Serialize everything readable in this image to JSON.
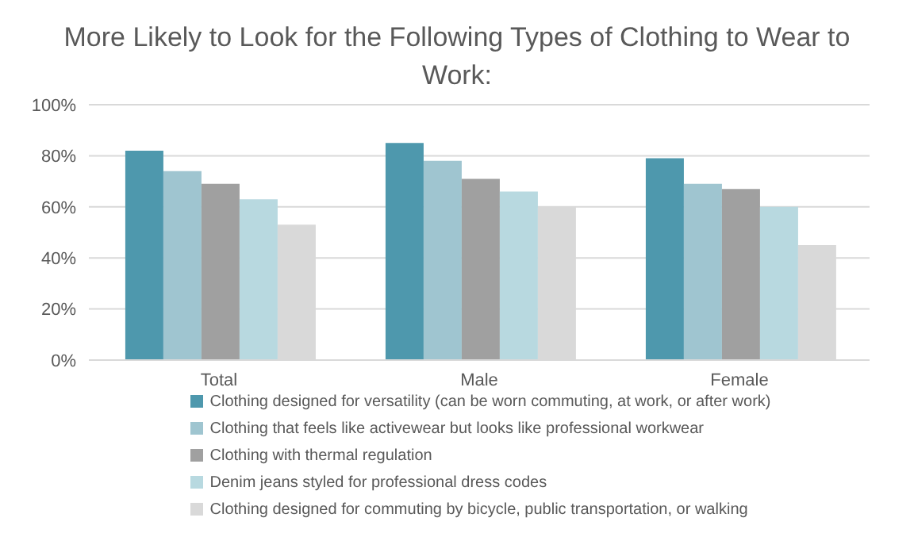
{
  "chart_data": {
    "type": "bar",
    "title": "More Likely to Look for the Following Types of Clothing to Wear to Work:",
    "categories": [
      "Total",
      "Male",
      "Female"
    ],
    "series": [
      {
        "name": "Clothing designed for versatility (can be worn commuting, at work, or after work)",
        "color": "#4e98ad",
        "values": [
          82,
          85,
          79
        ]
      },
      {
        "name": "Clothing that feels like activewear but looks like professional workwear",
        "color": "#9fc5d0",
        "values": [
          74,
          78,
          69
        ]
      },
      {
        "name": "Clothing with thermal regulation",
        "color": "#a0a0a0",
        "values": [
          69,
          71,
          67
        ]
      },
      {
        "name": "Denim jeans styled for professional dress codes",
        "color": "#b8d9e0",
        "values": [
          63,
          66,
          60
        ]
      },
      {
        "name": "Clothing designed for commuting by bicycle, public transportation, or walking",
        "color": "#d9d9d9",
        "values": [
          53,
          60,
          45
        ]
      }
    ],
    "ylim": [
      0,
      100
    ],
    "yticks": [
      {
        "value": 0,
        "label": "0%"
      },
      {
        "value": 20,
        "label": "20%"
      },
      {
        "value": 40,
        "label": "40%"
      },
      {
        "value": 60,
        "label": "60%"
      },
      {
        "value": 80,
        "label": "80%"
      },
      {
        "value": 100,
        "label": "100%"
      }
    ],
    "grid": "y",
    "legend": "bottom"
  }
}
